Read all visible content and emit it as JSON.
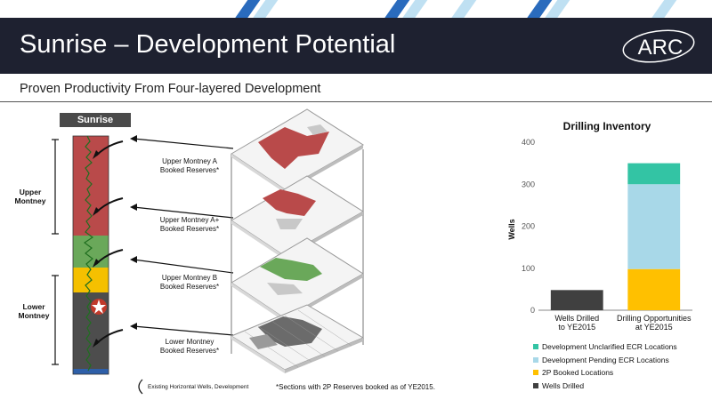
{
  "slide": {
    "title": "Sunrise – Development Potential",
    "subtitle": "Proven Productivity From Four-layered Development",
    "logo_text": "ARC"
  },
  "log_panel": {
    "header": "Sunrise",
    "zones": [
      {
        "label": "Upper\nMontney"
      },
      {
        "label": "Lower\nMontney"
      }
    ],
    "existing_wells_label": "Existing Horizontal Wells, Development"
  },
  "map_labels": [
    "Upper Montney A\nBooked Reserves*",
    "Upper Montney A+\nBooked Reserves*",
    "Upper Montney B\nBooked Reserves*",
    "Lower Montney\nBooked Reserves*"
  ],
  "footnote": "*Sections with 2P Reserves booked as of YE2015.",
  "colors": {
    "banner": "#1e2130",
    "upper_red": "#b94a4a",
    "green": "#5a9a4a",
    "yellow": "#f5c000",
    "dark_gray": "#4d4d4d",
    "blue": "#2e5fa8"
  },
  "chart_data": {
    "type": "bar",
    "stacked": true,
    "title": "Drilling Inventory",
    "xlabel": "",
    "ylabel": "Wells",
    "ylim": [
      0,
      400
    ],
    "yticks": [
      0,
      100,
      200,
      300,
      400
    ],
    "categories": [
      "Wells Drilled to YE2015",
      "Drilling Opportunities at YE2015"
    ],
    "series": [
      {
        "name": "Wells Drilled",
        "color": "#404040",
        "values": [
          48,
          0
        ]
      },
      {
        "name": "2P Booked Locations",
        "color": "#ffc000",
        "values": [
          0,
          98
        ]
      },
      {
        "name": "Development Pending ECR Locations",
        "color": "#a8d8e8",
        "values": [
          0,
          202
        ]
      },
      {
        "name": "Development Unclarified ECR Locations",
        "color": "#33c4a4",
        "values": [
          0,
          50
        ]
      }
    ],
    "legend_order": [
      "Development Unclarified ECR Locations",
      "Development Pending ECR Locations",
      "2P Booked Locations",
      "Wells Drilled"
    ],
    "legend_position": "bottom"
  }
}
